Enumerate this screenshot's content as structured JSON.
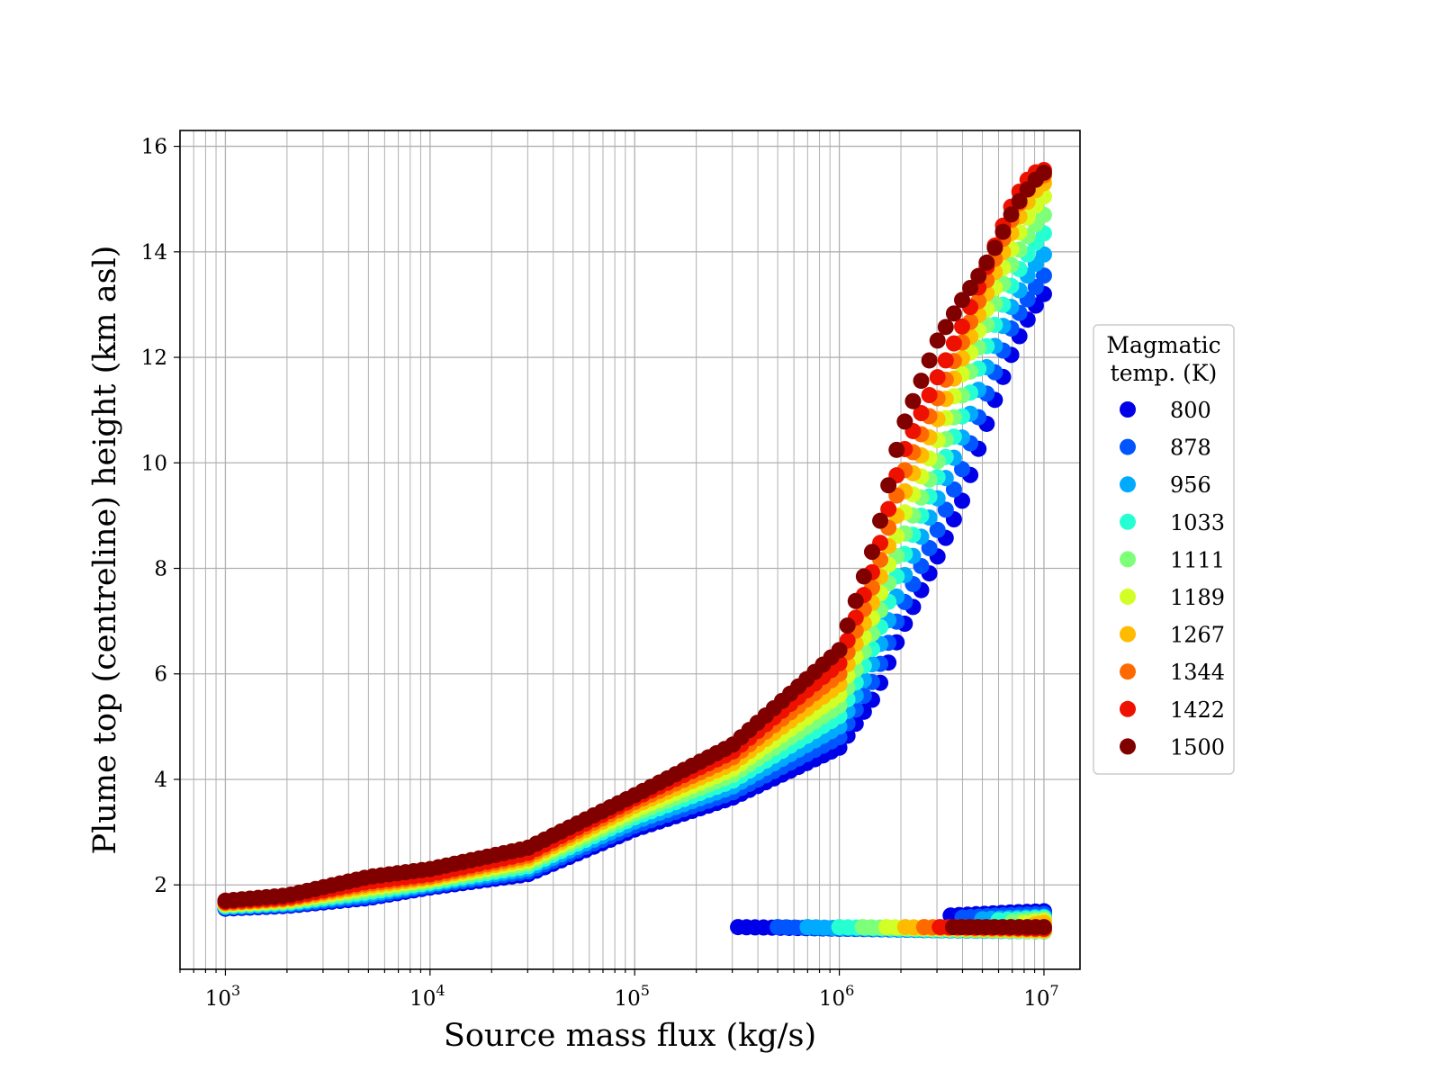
{
  "chart_data": {
    "type": "scatter",
    "title": "",
    "xlabel": "Source mass flux (kg/s)",
    "ylabel": "Plume top (centreline) height (km asl)",
    "xscale": "log",
    "xlim": [
      600,
      15000000
    ],
    "ylim": [
      0.4,
      16.3
    ],
    "xticks": [
      1000,
      10000,
      100000,
      1000000,
      10000000
    ],
    "xtick_labels": [
      {
        "base": "10",
        "exp": "3"
      },
      {
        "base": "10",
        "exp": "4"
      },
      {
        "base": "10",
        "exp": "5"
      },
      {
        "base": "10",
        "exp": "6"
      },
      {
        "base": "10",
        "exp": "7"
      }
    ],
    "yticks": [
      2,
      4,
      6,
      8,
      10,
      12,
      14,
      16
    ],
    "ytick_labels": [
      "2",
      "4",
      "6",
      "8",
      "10",
      "12",
      "14",
      "16"
    ],
    "grid": true,
    "grid_minor": true,
    "legend": {
      "title_line1": "Magmatic",
      "title_line2": "temp. (K)",
      "placement": "outside-right"
    },
    "series": [
      {
        "name": "800",
        "color": "#0000e8",
        "x": [
          1000,
          2000,
          5000,
          10000,
          30000,
          100000,
          300000,
          1000000,
          1500000,
          2000000,
          3000000,
          4000000,
          5000000,
          6000000,
          7000000,
          8000000,
          9000000,
          10000000
        ],
        "y": [
          1.55,
          1.6,
          1.75,
          1.95,
          2.2,
          3.05,
          3.65,
          4.6,
          5.6,
          6.8,
          8.2,
          9.3,
          10.5,
          11.4,
          12.1,
          12.6,
          12.95,
          13.2
        ],
        "lower_x": [
          320000,
          1000000,
          3000000,
          10000000
        ],
        "lower_y": [
          1.2,
          1.17,
          1.15,
          1.12
        ],
        "upper_x": [
          3500000,
          5000000,
          7000000,
          10000000
        ],
        "upper_y": [
          1.42,
          1.45,
          1.48,
          1.5
        ]
      },
      {
        "name": "878",
        "color": "#0055ff",
        "x": [
          1000,
          2000,
          5000,
          10000,
          30000,
          100000,
          300000,
          1000000,
          1500000,
          2000000,
          3000000,
          4000000,
          5000000,
          6000000,
          7000000,
          8000000,
          9000000,
          10000000
        ],
        "y": [
          1.57,
          1.62,
          1.78,
          1.98,
          2.25,
          3.12,
          3.75,
          4.8,
          5.95,
          7.2,
          8.7,
          9.9,
          11.1,
          11.9,
          12.6,
          13.0,
          13.3,
          13.55
        ],
        "lower_x": [
          500000,
          1000000,
          3000000,
          10000000
        ],
        "lower_y": [
          1.2,
          1.17,
          1.14,
          1.12
        ],
        "upper_x": [
          4000000,
          6000000,
          10000000
        ],
        "upper_y": [
          1.38,
          1.42,
          1.45
        ]
      },
      {
        "name": "956",
        "color": "#00aaff",
        "x": [
          1000,
          2000,
          5000,
          10000,
          30000,
          100000,
          300000,
          1000000,
          1500000,
          2000000,
          3000000,
          4000000,
          5000000,
          6000000,
          7000000,
          8000000,
          9000000,
          10000000
        ],
        "y": [
          1.58,
          1.64,
          1.82,
          2.01,
          2.3,
          3.2,
          3.86,
          5.0,
          6.3,
          7.7,
          9.3,
          10.5,
          11.6,
          12.4,
          13.0,
          13.45,
          13.75,
          13.95
        ],
        "lower_x": [
          700000,
          1000000,
          3000000,
          10000000
        ],
        "lower_y": [
          1.2,
          1.18,
          1.14,
          1.12
        ],
        "upper_x": [
          5000000,
          10000000
        ],
        "upper_y": [
          1.35,
          1.4
        ]
      },
      {
        "name": "1033",
        "color": "#26ffd2",
        "x": [
          1000,
          2000,
          5000,
          10000,
          30000,
          100000,
          300000,
          1000000,
          1500000,
          2000000,
          3000000,
          4000000,
          5000000,
          6000000,
          7000000,
          8000000,
          9000000,
          10000000
        ],
        "y": [
          1.6,
          1.66,
          1.86,
          2.04,
          2.35,
          3.28,
          3.97,
          5.2,
          6.6,
          8.1,
          9.7,
          10.9,
          12.0,
          12.8,
          13.4,
          13.85,
          14.15,
          14.35
        ],
        "lower_x": [
          1000000,
          3000000,
          10000000
        ],
        "lower_y": [
          1.2,
          1.15,
          1.12
        ],
        "upper_x": [
          6000000,
          10000000
        ],
        "upper_y": [
          1.33,
          1.38
        ]
      },
      {
        "name": "1111",
        "color": "#7dff7a",
        "x": [
          1000,
          2000,
          5000,
          10000,
          30000,
          100000,
          300000,
          1000000,
          1500000,
          2000000,
          3000000,
          4000000,
          5000000,
          6000000,
          7000000,
          8000000,
          9000000,
          10000000
        ],
        "y": [
          1.62,
          1.68,
          1.9,
          2.07,
          2.4,
          3.35,
          4.08,
          5.4,
          6.9,
          8.5,
          10.0,
          11.3,
          12.4,
          13.2,
          13.8,
          14.2,
          14.5,
          14.7
        ],
        "lower_x": [
          1300000,
          3000000,
          10000000
        ],
        "lower_y": [
          1.2,
          1.16,
          1.12
        ],
        "upper_x": [
          7000000,
          10000000
        ],
        "upper_y": [
          1.3,
          1.35
        ]
      },
      {
        "name": "1189",
        "color": "#d2ff26",
        "x": [
          1000,
          2000,
          5000,
          10000,
          30000,
          100000,
          300000,
          1000000,
          1500000,
          2000000,
          3000000,
          4000000,
          5000000,
          6000000,
          7000000,
          8000000,
          9000000,
          10000000
        ],
        "y": [
          1.63,
          1.7,
          1.94,
          2.1,
          2.45,
          3.42,
          4.19,
          5.6,
          7.2,
          8.9,
          10.4,
          11.7,
          12.7,
          13.5,
          14.1,
          14.55,
          14.85,
          15.05
        ],
        "lower_x": [
          1700000,
          3000000,
          10000000
        ],
        "lower_y": [
          1.2,
          1.17,
          1.13
        ],
        "upper_x": [
          8000000,
          10000000
        ],
        "upper_y": [
          1.28,
          1.32
        ]
      },
      {
        "name": "1267",
        "color": "#ffbb00",
        "x": [
          1000,
          2000,
          5000,
          10000,
          30000,
          100000,
          300000,
          1000000,
          1500000,
          2000000,
          3000000,
          4000000,
          5000000,
          6000000,
          7000000,
          8000000,
          9000000,
          10000000
        ],
        "y": [
          1.65,
          1.72,
          1.98,
          2.13,
          2.5,
          3.5,
          4.3,
          5.8,
          7.5,
          9.3,
          10.8,
          12.0,
          13.0,
          13.8,
          14.4,
          14.85,
          15.15,
          15.3
        ],
        "lower_x": [
          2100000,
          4000000,
          10000000
        ],
        "lower_y": [
          1.2,
          1.17,
          1.14
        ],
        "upper_x": [
          9000000,
          10000000
        ],
        "upper_y": [
          1.25,
          1.28
        ]
      },
      {
        "name": "1344",
        "color": "#ff6a00",
        "x": [
          1000,
          2000,
          5000,
          10000,
          30000,
          100000,
          300000,
          1000000,
          1500000,
          2000000,
          3000000,
          4000000,
          5000000,
          6000000,
          7000000,
          8000000,
          9000000,
          10000000
        ],
        "y": [
          1.66,
          1.74,
          2.02,
          2.16,
          2.55,
          3.57,
          4.41,
          6.0,
          7.8,
          9.7,
          11.2,
          12.3,
          13.25,
          14.05,
          14.65,
          15.1,
          15.35,
          15.45
        ],
        "lower_x": [
          2600000,
          5000000,
          10000000
        ],
        "lower_y": [
          1.2,
          1.18,
          1.16
        ],
        "upper_x": [],
        "upper_y": []
      },
      {
        "name": "1422",
        "color": "#ee1100",
        "x": [
          1000,
          2000,
          5000,
          10000,
          30000,
          100000,
          300000,
          1000000,
          1500000,
          2000000,
          3000000,
          4000000,
          5000000,
          6000000,
          7000000,
          8000000,
          9000000,
          10000000
        ],
        "y": [
          1.68,
          1.76,
          2.06,
          2.2,
          2.6,
          3.64,
          4.52,
          6.2,
          8.1,
          10.1,
          11.6,
          12.6,
          13.5,
          14.3,
          14.9,
          15.3,
          15.5,
          15.55
        ],
        "lower_x": [
          3100000,
          6000000,
          10000000
        ],
        "lower_y": [
          1.2,
          1.19,
          1.17
        ],
        "upper_x": [],
        "upper_y": []
      },
      {
        "name": "1500",
        "color": "#800000",
        "x": [
          1000,
          2000,
          5000,
          10000,
          30000,
          100000,
          300000,
          1000000,
          1500000,
          2000000,
          3000000,
          4000000,
          5000000,
          6000000,
          7000000,
          8000000,
          9000000,
          10000000
        ],
        "y": [
          1.7,
          1.8,
          2.15,
          2.3,
          2.7,
          3.7,
          4.65,
          6.45,
          8.5,
          10.6,
          12.3,
          13.1,
          13.65,
          14.2,
          14.75,
          15.1,
          15.35,
          15.5
        ],
        "lower_x": [
          3600000,
          6000000,
          10000000
        ],
        "lower_y": [
          1.2,
          1.2,
          1.2
        ],
        "upper_x": [],
        "upper_y": []
      }
    ]
  }
}
